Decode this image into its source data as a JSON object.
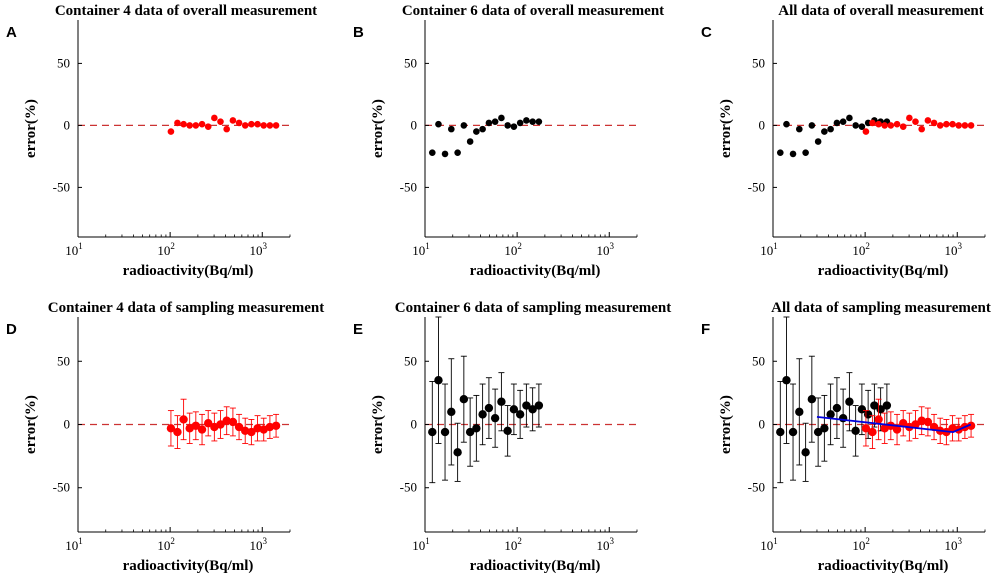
{
  "colors": {
    "container4": "#ff0000",
    "container6": "#000000",
    "fit_line": "#0000dd",
    "zero_line": "#cc3333"
  },
  "chart_data": [
    {
      "panel": "A",
      "type": "scatter",
      "title": "Container 4 data of overall measurement",
      "xlabel": "radioactivity(Bq/ml)",
      "ylabel": "error(%)",
      "xscale": "log",
      "xlim": [
        10,
        2000
      ],
      "ylim": [
        -90,
        85
      ],
      "xticks": [
        "10",
        "1",
        "10",
        "2",
        "10",
        "3"
      ],
      "yticks": [
        "50",
        "0",
        "-50"
      ],
      "series": [
        {
          "name": "Container 4",
          "color": "#ff0000",
          "x": [
            102,
            120,
            140,
            163,
            190,
            222,
            259,
            302,
            352,
            411,
            480,
            560,
            653,
            762,
            889,
            1037,
            1210,
            1412
          ],
          "y": [
            -5,
            2,
            1,
            0,
            0,
            1,
            -1,
            6,
            3,
            -3,
            4,
            2,
            0,
            1,
            1,
            0,
            0,
            0
          ]
        }
      ]
    },
    {
      "panel": "B",
      "type": "scatter",
      "title": "Container 6 data of overall measurement",
      "xlabel": "radioactivity(Bq/ml)",
      "ylabel": "error(%)",
      "xscale": "log",
      "xlim": [
        10,
        2000
      ],
      "ylim": [
        -90,
        85
      ],
      "xticks": [
        "10",
        "1",
        "10",
        "2",
        "10",
        "3"
      ],
      "yticks": [
        "50",
        "0",
        "-50"
      ],
      "series": [
        {
          "name": "Container 6",
          "color": "#000000",
          "x": [
            12,
            14,
            16.5,
            19.3,
            22.6,
            26.4,
            30.9,
            36.1,
            42.2,
            49.4,
            57.7,
            67.5,
            78.9,
            92.2,
            107.8,
            126,
            147.3,
            172.2
          ],
          "y": [
            -22,
            1,
            -23,
            -3,
            -22,
            0,
            -13,
            -5,
            -3,
            2,
            3,
            6,
            0,
            -1,
            2,
            4,
            3,
            3
          ]
        }
      ]
    },
    {
      "panel": "C",
      "type": "scatter",
      "title": "All data of overall measurement",
      "xlabel": "radioactivity(Bq/ml)",
      "ylabel": "error(%)",
      "xscale": "log",
      "xlim": [
        10,
        2000
      ],
      "ylim": [
        -90,
        85
      ],
      "xticks": [
        "10",
        "1",
        "10",
        "2",
        "10",
        "3"
      ],
      "yticks": [
        "50",
        "0",
        "-50"
      ],
      "series": [
        {
          "name": "Container 6",
          "color": "#000000",
          "x": [
            12,
            14,
            16.5,
            19.3,
            22.6,
            26.4,
            30.9,
            36.1,
            42.2,
            49.4,
            57.7,
            67.5,
            78.9,
            92.2,
            107.8,
            126,
            147.3,
            172.2
          ],
          "y": [
            -22,
            1,
            -23,
            -3,
            -22,
            0,
            -13,
            -5,
            -3,
            2,
            3,
            6,
            0,
            -1,
            2,
            4,
            3,
            3
          ]
        },
        {
          "name": "Container 4",
          "color": "#ff0000",
          "x": [
            102,
            120,
            140,
            163,
            190,
            222,
            259,
            302,
            352,
            411,
            480,
            560,
            653,
            762,
            889,
            1037,
            1210,
            1412
          ],
          "y": [
            -5,
            2,
            1,
            0,
            0,
            1,
            -1,
            6,
            3,
            -3,
            4,
            2,
            0,
            1,
            1,
            0,
            0,
            0
          ]
        }
      ]
    },
    {
      "panel": "D",
      "type": "scatter",
      "title": "Container 4 data of sampling measurement",
      "xlabel": "radioactivity(Bq/ml)",
      "ylabel": "error(%)",
      "xscale": "log",
      "xlim": [
        10,
        2000
      ],
      "ylim": [
        -85,
        85
      ],
      "xticks": [
        "10",
        "1",
        "10",
        "2",
        "10",
        "3"
      ],
      "yticks": [
        "50",
        "0",
        "-50"
      ],
      "series": [
        {
          "name": "Container 4",
          "color": "#ff0000",
          "errorbars": true,
          "x": [
            102,
            120,
            140,
            163,
            190,
            222,
            259,
            302,
            352,
            411,
            480,
            560,
            653,
            762,
            889,
            1037,
            1210,
            1412
          ],
          "y": [
            -3,
            -6,
            4,
            -3,
            -1,
            -4,
            1,
            -2,
            0,
            3,
            2,
            -2,
            -5,
            -6,
            -3,
            -4,
            -2,
            -1
          ],
          "err": [
            14,
            13,
            16,
            12,
            11,
            12,
            10,
            11,
            11,
            11,
            11,
            10,
            10,
            10,
            10,
            9,
            9,
            9
          ]
        }
      ]
    },
    {
      "panel": "E",
      "type": "scatter",
      "title": "Container 6 data of sampling measurement",
      "xlabel": "radioactivity(Bq/ml)",
      "ylabel": "error(%)",
      "xscale": "log",
      "xlim": [
        10,
        2000
      ],
      "ylim": [
        -85,
        85
      ],
      "xticks": [
        "10",
        "1",
        "10",
        "2",
        "10",
        "3"
      ],
      "yticks": [
        "50",
        "0",
        "-50"
      ],
      "series": [
        {
          "name": "Container 6",
          "color": "#000000",
          "errorbars": true,
          "x": [
            12,
            14,
            16.5,
            19.3,
            22.6,
            26.4,
            30.9,
            36.1,
            42.2,
            49.4,
            57.7,
            67.5,
            78.9,
            92.2,
            107.8,
            126,
            147.3,
            172.2
          ],
          "y": [
            -6,
            35,
            -6,
            10,
            -22,
            20,
            -6,
            -3,
            8,
            13,
            5,
            18,
            -5,
            12,
            8,
            15,
            12,
            15
          ],
          "err": [
            40,
            50,
            38,
            42,
            23,
            34,
            27,
            26,
            24,
            24,
            23,
            23,
            20,
            20,
            19,
            17,
            17,
            17
          ]
        }
      ]
    },
    {
      "panel": "F",
      "type": "scatter",
      "title": "All data of sampling measurement",
      "xlabel": "radioactivity(Bq/ml)",
      "ylabel": "error(%)",
      "xscale": "log",
      "xlim": [
        10,
        2000
      ],
      "ylim": [
        -85,
        85
      ],
      "xticks": [
        "10",
        "1",
        "10",
        "2",
        "10",
        "3"
      ],
      "yticks": [
        "50",
        "0",
        "-50"
      ],
      "series": [
        {
          "name": "Container 6",
          "color": "#000000",
          "errorbars": true,
          "x": [
            12,
            14,
            16.5,
            19.3,
            22.6,
            26.4,
            30.9,
            36.1,
            42.2,
            49.4,
            57.7,
            67.5,
            78.9,
            92.2,
            107.8,
            126,
            147.3,
            172.2
          ],
          "y": [
            -6,
            35,
            -6,
            10,
            -22,
            20,
            -6,
            -3,
            8,
            13,
            5,
            18,
            -5,
            12,
            8,
            15,
            12,
            15
          ],
          "err": [
            40,
            50,
            38,
            42,
            23,
            34,
            27,
            26,
            24,
            24,
            23,
            23,
            20,
            20,
            19,
            17,
            17,
            17
          ]
        },
        {
          "name": "Container 4",
          "color": "#ff0000",
          "errorbars": true,
          "x": [
            102,
            120,
            140,
            163,
            190,
            222,
            259,
            302,
            352,
            411,
            480,
            560,
            653,
            762,
            889,
            1037,
            1210,
            1412
          ],
          "y": [
            -3,
            -6,
            4,
            -3,
            -1,
            -4,
            1,
            -2,
            0,
            3,
            2,
            -2,
            -5,
            -6,
            -3,
            -4,
            -2,
            -1
          ],
          "err": [
            14,
            13,
            16,
            12,
            11,
            12,
            10,
            11,
            11,
            11,
            11,
            10,
            10,
            10,
            10,
            9,
            9,
            9
          ]
        }
      ],
      "fit_line": {
        "name": "fit",
        "color": "#0000dd",
        "x": [
          30,
          900,
          1400
        ],
        "y": [
          6,
          -6,
          0
        ]
      }
    }
  ]
}
